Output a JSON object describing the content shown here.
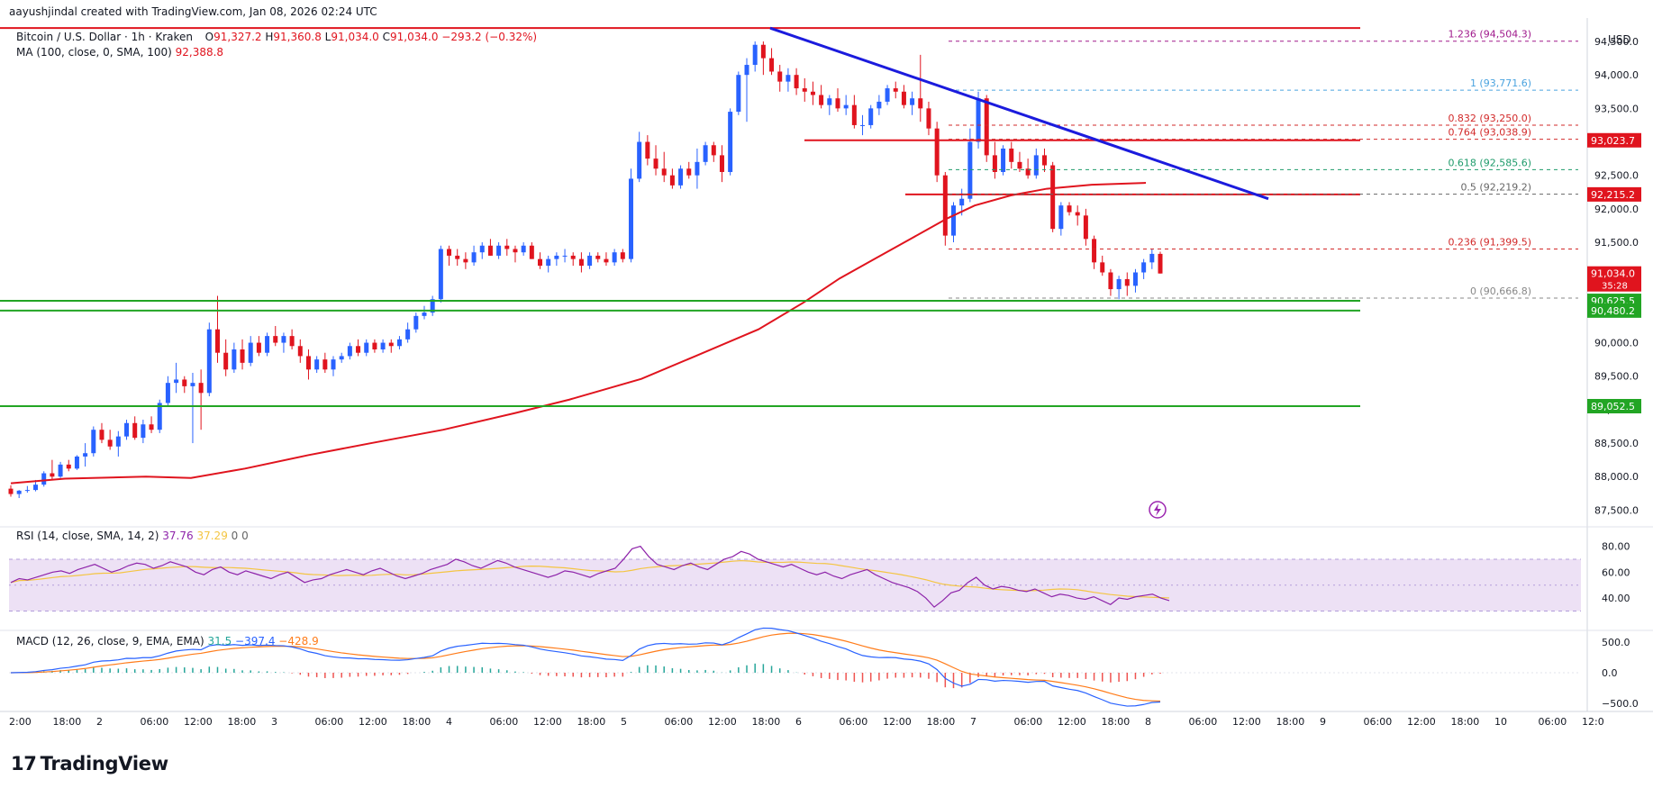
{
  "watermark": "aayushjindal created with TradingView.com, Jan 08, 2026 02:24 UTC",
  "header": {
    "symbol": "Bitcoin / U.S. Dollar · 1h · Kraken",
    "ohlc": {
      "open_label": "O",
      "open": "91,327.2",
      "high_label": "H",
      "high": "91,360.8",
      "low_label": "L",
      "low": "91,034.0",
      "close_label": "C",
      "close": "91,034.0",
      "change": "−293.2 (−0.32%)"
    },
    "ma_label": "MA (100, close, 0, SMA, 100)",
    "ma_value": "92,388.8",
    "rsi_label": "RSI (14, close, SMA, 14, 2)",
    "rsi_value": "37.76",
    "rsi_ma_value": "37.29",
    "rsi_extra1": "0",
    "rsi_extra2": "0",
    "macd_label": "MACD (12, 26, close, 9, EMA, EMA)",
    "macd_hist": "31.5",
    "macd_line": "−397.4",
    "macd_signal": "−428.9"
  },
  "currency": "USD",
  "logo_text": "TradingView",
  "colors": {
    "up": "#2962ff",
    "down": "#e0141e",
    "ma": "#e0141e",
    "support": "#22a524",
    "resistance": "#e0141e",
    "trendline": "#1b1bdd",
    "rsi": "#8e24aa",
    "rsi_ma": "#f4c542",
    "rsi_band": "#ede1f5",
    "macd_line": "#2962ff",
    "macd_signal": "#ff7c1a",
    "price_tag": "#e0141e",
    "current_tag": "#e0141e"
  },
  "chart_data": {
    "type": "candlestick",
    "price_axis": {
      "ticks": [
        "94,500.0",
        "94,000.0",
        "93,500.0",
        "93,000.0",
        "92,500.0",
        "92,000.0",
        "91,500.0",
        "91,000.0",
        "90,500.0",
        "90,000.0",
        "89,500.0",
        "89,000.0",
        "88,500.0",
        "88,000.0",
        "87,500.0"
      ],
      "range": [
        87250,
        94850
      ]
    },
    "time_axis": {
      "ticks": [
        "2:00",
        "18:00",
        "2",
        "06:00",
        "12:00",
        "18:00",
        "3",
        "06:00",
        "12:00",
        "18:00",
        "4",
        "06:00",
        "12:00",
        "18:00",
        "5",
        "06:00",
        "12:00",
        "18:00",
        "6",
        "06:00",
        "12:00",
        "18:00",
        "7",
        "06:00",
        "12:00",
        "18:00",
        "8",
        "06:00",
        "12:00",
        "18:00",
        "9",
        "06:00",
        "12:00",
        "18:00",
        "10",
        "06:00",
        "12:0"
      ]
    },
    "candles": [
      [
        87820,
        87870,
        87700,
        87740
      ],
      [
        87740,
        87800,
        87680,
        87790
      ],
      [
        87790,
        87860,
        87760,
        87800
      ],
      [
        87800,
        87950,
        87780,
        87880
      ],
      [
        87880,
        88080,
        87850,
        88050
      ],
      [
        88050,
        88250,
        87950,
        88000
      ],
      [
        88000,
        88220,
        87980,
        88180
      ],
      [
        88180,
        88250,
        88080,
        88120
      ],
      [
        88120,
        88320,
        88100,
        88300
      ],
      [
        88300,
        88500,
        88150,
        88350
      ],
      [
        88350,
        88750,
        88300,
        88700
      ],
      [
        88700,
        88800,
        88500,
        88550
      ],
      [
        88550,
        88700,
        88400,
        88450
      ],
      [
        88450,
        88680,
        88300,
        88600
      ],
      [
        88600,
        88850,
        88550,
        88800
      ],
      [
        88800,
        88900,
        88550,
        88580
      ],
      [
        88580,
        88850,
        88500,
        88780
      ],
      [
        88780,
        88900,
        88650,
        88700
      ],
      [
        88700,
        89150,
        88650,
        89100
      ],
      [
        89100,
        89500,
        89050,
        89400
      ],
      [
        89400,
        89700,
        89250,
        89450
      ],
      [
        89450,
        89500,
        89250,
        89350
      ],
      [
        89350,
        89550,
        88500,
        89400
      ],
      [
        89400,
        89600,
        88700,
        89250
      ],
      [
        89250,
        90300,
        89200,
        90200
      ],
      [
        90200,
        90700,
        89700,
        89850
      ],
      [
        89850,
        90050,
        89500,
        89600
      ],
      [
        89600,
        90000,
        89550,
        89900
      ],
      [
        89900,
        90050,
        89600,
        89700
      ],
      [
        89700,
        90100,
        89650,
        90000
      ],
      [
        90000,
        90100,
        89800,
        89850
      ],
      [
        89850,
        90150,
        89800,
        90100
      ],
      [
        90100,
        90250,
        89950,
        90000
      ],
      [
        90000,
        90150,
        89850,
        90100
      ],
      [
        90100,
        90200,
        89900,
        89950
      ],
      [
        89950,
        90050,
        89700,
        89800
      ],
      [
        89800,
        89900,
        89450,
        89600
      ],
      [
        89600,
        89800,
        89550,
        89750
      ],
      [
        89750,
        89850,
        89550,
        89600
      ],
      [
        89600,
        89800,
        89500,
        89750
      ],
      [
        89750,
        89850,
        89700,
        89800
      ],
      [
        89800,
        90000,
        89750,
        89950
      ],
      [
        89950,
        90050,
        89800,
        89850
      ],
      [
        89850,
        90050,
        89800,
        90000
      ],
      [
        90000,
        90050,
        89850,
        89900
      ],
      [
        89900,
        90050,
        89850,
        90000
      ],
      [
        90000,
        90050,
        89850,
        89950
      ],
      [
        89950,
        90100,
        89900,
        90050
      ],
      [
        90050,
        90300,
        90000,
        90200
      ],
      [
        90200,
        90450,
        90150,
        90400
      ],
      [
        90400,
        90550,
        90350,
        90450
      ],
      [
        90450,
        90700,
        90400,
        90650
      ],
      [
        90650,
        91450,
        90600,
        91400
      ],
      [
        91400,
        91450,
        91150,
        91300
      ],
      [
        91300,
        91400,
        91150,
        91250
      ],
      [
        91250,
        91350,
        91100,
        91200
      ],
      [
        91200,
        91450,
        91150,
        91350
      ],
      [
        91350,
        91500,
        91250,
        91450
      ],
      [
        91450,
        91550,
        91300,
        91300
      ],
      [
        91300,
        91500,
        91250,
        91450
      ],
      [
        91450,
        91550,
        91300,
        91400
      ],
      [
        91400,
        91450,
        91200,
        91350
      ],
      [
        91350,
        91500,
        91300,
        91450
      ],
      [
        91450,
        91500,
        91250,
        91250
      ],
      [
        91250,
        91350,
        91100,
        91150
      ],
      [
        91150,
        91300,
        91050,
        91250
      ],
      [
        91250,
        91350,
        91150,
        91300
      ],
      [
        91300,
        91400,
        91200,
        91300
      ],
      [
        91300,
        91350,
        91150,
        91250
      ],
      [
        91250,
        91350,
        91050,
        91150
      ],
      [
        91150,
        91350,
        91100,
        91300
      ],
      [
        91300,
        91350,
        91200,
        91250
      ],
      [
        91250,
        91350,
        91150,
        91200
      ],
      [
        91200,
        91400,
        91150,
        91350
      ],
      [
        91350,
        91400,
        91200,
        91250
      ],
      [
        91250,
        92600,
        91200,
        92450
      ],
      [
        92450,
        93150,
        92400,
        93000
      ],
      [
        93000,
        93100,
        92650,
        92750
      ],
      [
        92750,
        92950,
        92500,
        92600
      ],
      [
        92600,
        92850,
        92400,
        92500
      ],
      [
        92500,
        92600,
        92300,
        92350
      ],
      [
        92350,
        92650,
        92300,
        92600
      ],
      [
        92600,
        92700,
        92450,
        92500
      ],
      [
        92500,
        92900,
        92300,
        92700
      ],
      [
        92700,
        93000,
        92650,
        92950
      ],
      [
        92950,
        93000,
        92700,
        92800
      ],
      [
        92800,
        92950,
        92400,
        92550
      ],
      [
        92550,
        93500,
        92500,
        93450
      ],
      [
        93450,
        94050,
        93400,
        94000
      ],
      [
        94000,
        94250,
        93300,
        94150
      ],
      [
        94150,
        94500,
        94050,
        94450
      ],
      [
        94450,
        94500,
        94000,
        94250
      ],
      [
        94250,
        94400,
        94000,
        94050
      ],
      [
        94050,
        94150,
        93750,
        93900
      ],
      [
        93900,
        94100,
        93750,
        94000
      ],
      [
        94000,
        94100,
        93700,
        93800
      ],
      [
        93800,
        93950,
        93600,
        93750
      ],
      [
        93750,
        93900,
        93550,
        93700
      ],
      [
        93700,
        93850,
        93500,
        93550
      ],
      [
        93550,
        93700,
        93400,
        93650
      ],
      [
        93650,
        93800,
        93450,
        93500
      ],
      [
        93500,
        93700,
        93400,
        93550
      ],
      [
        93550,
        93700,
        93200,
        93250
      ],
      [
        93250,
        93400,
        93100,
        93250
      ],
      [
        93250,
        93550,
        93200,
        93500
      ],
      [
        93500,
        93700,
        93400,
        93600
      ],
      [
        93600,
        93850,
        93550,
        93800
      ],
      [
        93800,
        93900,
        93650,
        93750
      ],
      [
        93750,
        93850,
        93500,
        93550
      ],
      [
        93550,
        93750,
        93400,
        93650
      ],
      [
        93650,
        94300,
        93300,
        93500
      ],
      [
        93500,
        93600,
        93100,
        93200
      ],
      [
        93200,
        93300,
        92400,
        92500
      ],
      [
        92500,
        92550,
        91450,
        91600
      ],
      [
        91600,
        92100,
        91500,
        92050
      ],
      [
        92050,
        92300,
        91900,
        92150
      ],
      [
        92150,
        93200,
        92100,
        93000
      ],
      [
        93000,
        93750,
        92900,
        93650
      ],
      [
        93650,
        93700,
        92700,
        92800
      ],
      [
        92800,
        93000,
        92450,
        92550
      ],
      [
        92550,
        92950,
        92500,
        92900
      ],
      [
        92900,
        93000,
        92600,
        92700
      ],
      [
        92700,
        92850,
        92550,
        92600
      ],
      [
        92600,
        92750,
        92450,
        92500
      ],
      [
        92500,
        92900,
        92450,
        92800
      ],
      [
        92800,
        92900,
        92550,
        92650
      ],
      [
        92650,
        92700,
        91650,
        91700
      ],
      [
        91700,
        92100,
        91600,
        92050
      ],
      [
        92050,
        92100,
        91900,
        91950
      ],
      [
        91950,
        92050,
        91750,
        91900
      ],
      [
        91900,
        92000,
        91450,
        91550
      ],
      [
        91550,
        91600,
        91100,
        91200
      ],
      [
        91200,
        91300,
        91000,
        91050
      ],
      [
        91050,
        91100,
        90700,
        90800
      ],
      [
        90800,
        91000,
        90650,
        90950
      ],
      [
        90950,
        91050,
        90700,
        90850
      ],
      [
        90850,
        91100,
        90750,
        91050
      ],
      [
        91050,
        91250,
        90950,
        91200
      ],
      [
        91200,
        91400,
        91100,
        91327
      ],
      [
        91327,
        91360,
        91034,
        91034
      ]
    ],
    "ma100_points": [
      [
        0,
        87900
      ],
      [
        60,
        87970
      ],
      [
        150,
        88000
      ],
      [
        200,
        87980
      ],
      [
        260,
        88120
      ],
      [
        330,
        88320
      ],
      [
        400,
        88500
      ],
      [
        480,
        88700
      ],
      [
        560,
        88950
      ],
      [
        620,
        89150
      ],
      [
        700,
        89460
      ],
      [
        760,
        89800
      ],
      [
        830,
        90200
      ],
      [
        880,
        90600
      ],
      [
        920,
        90960
      ],
      [
        960,
        91260
      ],
      [
        1000,
        91560
      ],
      [
        1040,
        91860
      ],
      [
        1070,
        92050
      ],
      [
        1110,
        92200
      ],
      [
        1150,
        92300
      ],
      [
        1200,
        92360
      ],
      [
        1260,
        92388
      ]
    ],
    "horizontal_levels": [
      {
        "price": 94700,
        "color": "resistance",
        "from_x": 0,
        "to_x": 1510
      },
      {
        "price": 93023.7,
        "label": "93,023.7",
        "color": "resistance",
        "from_x": 893,
        "to_x": 1510
      },
      {
        "price": 92215.2,
        "label": "92,215.2",
        "color": "resistance",
        "from_x": 1005,
        "to_x": 1510
      },
      {
        "price": 90625.5,
        "label": "90,625.5",
        "color": "support",
        "from_x": 0,
        "to_x": 1510
      },
      {
        "price": 90480.2,
        "label": "90,480.2",
        "color": "support",
        "from_x": 0,
        "to_x": 1510
      },
      {
        "price": 89052.5,
        "label": "89,052.5",
        "color": "support",
        "from_x": 0,
        "to_x": 1510
      }
    ],
    "trendline": {
      "from": [
        855,
        94700
      ],
      "to": [
        1408,
        92150
      ]
    },
    "fibonacci": [
      {
        "ratio": "1.236",
        "value": "94,504.3",
        "price": 94504.3,
        "color": "#a01a8c"
      },
      {
        "ratio": "1",
        "value": "93,771.6",
        "price": 93771.6,
        "color": "#4aa3df"
      },
      {
        "ratio": "0.832",
        "value": "93,250.0",
        "price": 93250.0,
        "color": "#d22a2a"
      },
      {
        "ratio": "0.764",
        "value": "93,038.9",
        "price": 93038.9,
        "color": "#d22a2a"
      },
      {
        "ratio": "0.618",
        "value": "92,585.6",
        "price": 92585.6,
        "color": "#1f9b6b"
      },
      {
        "ratio": "0.5",
        "value": "92,219.2",
        "price": 92219.2,
        "color": "#666666"
      },
      {
        "ratio": "0.236",
        "value": "91,399.5",
        "price": 91399.5,
        "color": "#d22a2a"
      },
      {
        "ratio": "0",
        "value": "90,666.8",
        "price": 90666.8,
        "color": "#888888"
      }
    ],
    "current_price": "91,034.0",
    "countdown": "35:28",
    "rsi": {
      "ticks": [
        "80.00",
        "60.00",
        "40.00"
      ],
      "band": [
        30,
        70
      ]
    },
    "macd": {
      "ticks": [
        "500.0",
        "0.0",
        "−500.0"
      ]
    }
  }
}
